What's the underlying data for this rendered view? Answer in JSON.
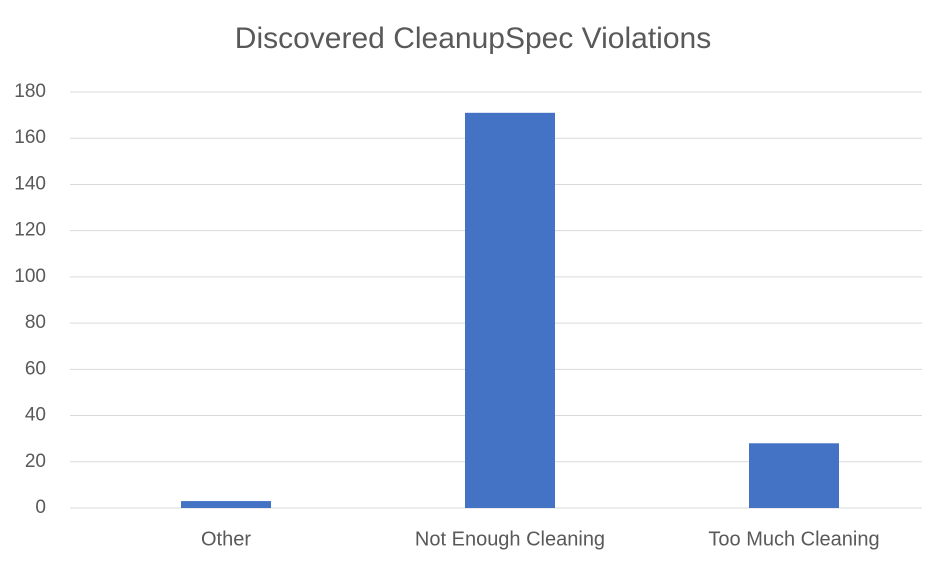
{
  "chart_data": {
    "type": "bar",
    "title": "Discovered CleanupSpec Violations",
    "categories": [
      "Other",
      "Not Enough Cleaning",
      "Too Much Cleaning"
    ],
    "values": [
      3,
      171,
      28
    ],
    "color": "#4472c4",
    "ylim": [
      0,
      180
    ],
    "yticks": [
      0,
      20,
      40,
      60,
      80,
      100,
      120,
      140,
      160,
      180
    ],
    "grid": true
  }
}
